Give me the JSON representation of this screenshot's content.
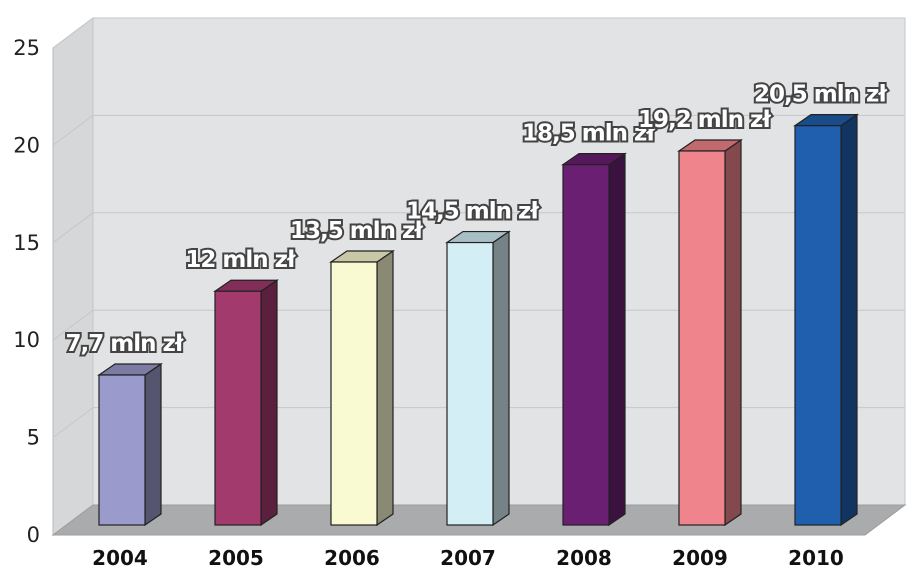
{
  "chart_data": {
    "type": "bar",
    "categories": [
      "2004",
      "2005",
      "2006",
      "2007",
      "2008",
      "2009",
      "2010"
    ],
    "values": [
      7.7,
      12,
      13.5,
      14.5,
      18.5,
      19.2,
      20.5
    ],
    "data_labels": [
      "7,7 mln zł",
      "12 mln zł",
      "13,5 mln zł",
      "14,5 mln zł",
      "18,5 mln zł",
      "19,2 mln zł",
      "20,5 mln zł"
    ],
    "y_ticks": [
      "0",
      "5",
      "10",
      "15",
      "20",
      "25"
    ],
    "ylim": [
      0,
      25
    ],
    "grid": true,
    "legend": "none",
    "colors": [
      "#9a9acc",
      "#a33a6e",
      "#fafad2",
      "#d4eef6",
      "#6a1f72",
      "#f0848c",
      "#1f5fae"
    ]
  }
}
